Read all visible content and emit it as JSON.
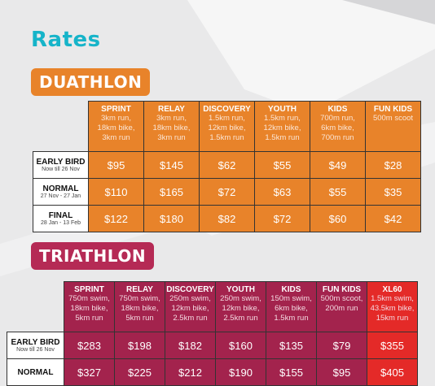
{
  "page": {
    "title": "Rates",
    "colors": {
      "title": "#16b4c9",
      "duathlon": "#e8832a",
      "triathlon": "#a3234d",
      "xl60": "#e42a28"
    }
  },
  "duathlon": {
    "heading": "DUATHLON",
    "columns": [
      {
        "name": "SPRINT",
        "desc": [
          "3km run,",
          "18km bike,",
          "3km run"
        ]
      },
      {
        "name": "RELAY",
        "desc": [
          "3km run,",
          "18km bike,",
          "3km run"
        ]
      },
      {
        "name": "DISCOVERY",
        "desc": [
          "1.5km run,",
          "12km bike,",
          "1.5km run"
        ]
      },
      {
        "name": "YOUTH",
        "desc": [
          "1.5km run,",
          "12km bike,",
          "1.5km run"
        ]
      },
      {
        "name": "KIDS",
        "desc": [
          "700m run,",
          "6km bike,",
          "700m run"
        ]
      },
      {
        "name": "FUN KIDS",
        "desc": [
          "500m scoot",
          "",
          ""
        ]
      }
    ],
    "rows": [
      {
        "name": "EARLY BIRD",
        "sub": "Now till 26 Nov",
        "prices": [
          "$95",
          "$145",
          "$62",
          "$55",
          "$49",
          "$28"
        ]
      },
      {
        "name": "NORMAL",
        "sub": "27 Nov - 27 Jan",
        "prices": [
          "$110",
          "$165",
          "$72",
          "$63",
          "$55",
          "$35"
        ]
      },
      {
        "name": "FINAL",
        "sub": "28 Jan - 13 Feb",
        "prices": [
          "$122",
          "$180",
          "$82",
          "$72",
          "$60",
          "$42"
        ]
      }
    ]
  },
  "triathlon": {
    "heading": "TRIATHLON",
    "columns": [
      {
        "name": "SPRINT",
        "desc": [
          "750m swim,",
          "18km bike,",
          "5km run"
        ]
      },
      {
        "name": "RELAY",
        "desc": [
          "750m swim,",
          "18km bike,",
          "5km run"
        ]
      },
      {
        "name": "DISCOVERY",
        "desc": [
          "250m swim,",
          "12km bike,",
          "2.5km run"
        ]
      },
      {
        "name": "YOUTH",
        "desc": [
          "250m swim,",
          "12km bike,",
          "2.5km run"
        ]
      },
      {
        "name": "KIDS",
        "desc": [
          "150m swim,",
          "6km bike,",
          "1.5km run"
        ]
      },
      {
        "name": "FUN KIDS",
        "desc": [
          "500m scoot,",
          "200m run",
          ""
        ]
      },
      {
        "name": "XL60",
        "desc": [
          "1.5km swim,",
          "43.5km bike,",
          "15km run"
        ]
      }
    ],
    "rows": [
      {
        "name": "EARLY BIRD",
        "sub": "Now till 26 Nov",
        "prices": [
          "$283",
          "$198",
          "$182",
          "$160",
          "$135",
          "$79",
          "$355"
        ]
      },
      {
        "name": "NORMAL",
        "sub": "",
        "prices": [
          "$327",
          "$225",
          "$212",
          "$190",
          "$155",
          "$95",
          "$405"
        ]
      }
    ]
  }
}
